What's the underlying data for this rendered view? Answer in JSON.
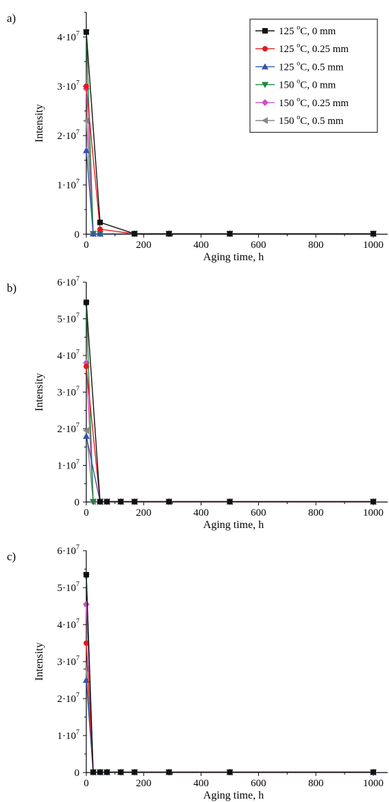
{
  "chart_data": [
    {
      "panel": "a)",
      "type": "line",
      "xlabel": "Aging time, h",
      "ylabel": "Intensity",
      "xlim": [
        0,
        1050
      ],
      "ylim": [
        0,
        45000000.0
      ],
      "xticks": [
        "0",
        "200",
        "400",
        "600",
        "800",
        "1000"
      ],
      "yticks": [
        {
          "mantissa": "0",
          "exp": ""
        },
        {
          "mantissa": "1·10",
          "exp": "7"
        },
        {
          "mantissa": "2·10",
          "exp": "7"
        },
        {
          "mantissa": "3·10",
          "exp": "7"
        },
        {
          "mantissa": "4·10",
          "exp": "7"
        }
      ],
      "legend": {
        "position": "top-right",
        "entries": [
          {
            "temp": "125",
            "deg": "o",
            "rest": "C, 0 mm",
            "color": "#111111",
            "marker": "square"
          },
          {
            "temp": "125",
            "deg": "o",
            "rest": "C, 0.25 mm",
            "color": "#e31a1c",
            "marker": "circle"
          },
          {
            "temp": "125",
            "deg": "o",
            "rest": "C, 0.5 mm",
            "color": "#3355aa",
            "marker": "triangle-up"
          },
          {
            "temp": "150",
            "deg": "o",
            "rest": "C, 0 mm",
            "color": "#1a8a3a",
            "marker": "triangle-down"
          },
          {
            "temp": "150",
            "deg": "o",
            "rest": "C, 0.25 mm",
            "color": "#d050c0",
            "marker": "diamond"
          },
          {
            "temp": "150",
            "deg": "o",
            "rest": "C, 0.5 mm",
            "color": "#888888",
            "marker": "triangle-left"
          }
        ]
      },
      "series": [
        {
          "x": [
            0,
            48,
            168,
            288,
            500,
            1000
          ],
          "y": [
            41000000.0,
            2400000.0,
            100000.0,
            100000.0,
            100000.0,
            100000.0
          ]
        },
        {
          "x": [
            0,
            48,
            168,
            288,
            500,
            1000
          ],
          "y": [
            30000000.0,
            1000000.0,
            100000.0,
            100000.0,
            100000.0,
            100000.0
          ]
        },
        {
          "x": [
            0,
            24,
            48,
            168,
            288,
            500,
            1000
          ],
          "y": [
            17000000.0,
            100000.0,
            100000.0,
            100000.0,
            100000.0,
            100000.0,
            100000.0
          ]
        },
        {
          "x": [
            0,
            24,
            48,
            168,
            288,
            500,
            1000
          ],
          "y": [
            41000000.0,
            100000.0,
            100000.0,
            100000.0,
            100000.0,
            100000.0,
            100000.0
          ]
        },
        {
          "x": [
            0,
            24,
            48,
            168,
            288,
            500,
            1000
          ],
          "y": [
            29500000.0,
            100000.0,
            100000.0,
            100000.0,
            100000.0,
            100000.0,
            100000.0
          ]
        },
        {
          "x": [
            0,
            24,
            48,
            168,
            288,
            500,
            1000
          ],
          "y": [
            23000000.0,
            100000.0,
            100000.0,
            100000.0,
            100000.0,
            100000.0,
            100000.0
          ]
        }
      ]
    },
    {
      "panel": "b)",
      "type": "line",
      "xlabel": "Aging time, h",
      "ylabel": "Intensity",
      "xlim": [
        0,
        1050
      ],
      "ylim": [
        0,
        60000000.0
      ],
      "xticks": [
        "0",
        "200",
        "400",
        "600",
        "800",
        "1000"
      ],
      "yticks": [
        {
          "mantissa": "0",
          "exp": ""
        },
        {
          "mantissa": "1·10",
          "exp": "7"
        },
        {
          "mantissa": "2·10",
          "exp": "7"
        },
        {
          "mantissa": "3·10",
          "exp": "7"
        },
        {
          "mantissa": "4·10",
          "exp": "7"
        },
        {
          "mantissa": "5·10",
          "exp": "7"
        },
        {
          "mantissa": "6·10",
          "exp": "7"
        }
      ],
      "series": [
        {
          "x": [
            0,
            48,
            72,
            120,
            168,
            288,
            500,
            1000
          ],
          "y": [
            54500000.0,
            100000.0,
            100000.0,
            100000.0,
            100000.0,
            100000.0,
            100000.0,
            100000.0
          ]
        },
        {
          "x": [
            0,
            48,
            72,
            120,
            168,
            288,
            500,
            1000
          ],
          "y": [
            37000000.0,
            100000.0,
            100000.0,
            100000.0,
            100000.0,
            100000.0,
            100000.0,
            100000.0
          ]
        },
        {
          "x": [
            0,
            48,
            72,
            120,
            168,
            288,
            500,
            1000
          ],
          "y": [
            18000000.0,
            100000.0,
            100000.0,
            100000.0,
            100000.0,
            100000.0,
            100000.0,
            100000.0
          ]
        },
        {
          "x": [
            0,
            24,
            48,
            72,
            120,
            168,
            288,
            500,
            1000
          ],
          "y": [
            54000000.0,
            100000.0,
            100000.0,
            100000.0,
            100000.0,
            100000.0,
            100000.0,
            100000.0,
            100000.0
          ]
        },
        {
          "x": [
            0,
            24,
            48,
            72,
            120,
            168,
            288,
            500,
            1000
          ],
          "y": [
            38000000.0,
            100000.0,
            100000.0,
            100000.0,
            100000.0,
            100000.0,
            100000.0,
            100000.0,
            100000.0
          ]
        },
        {
          "x": [
            0,
            24,
            48,
            72,
            120,
            168,
            288,
            500,
            1000
          ],
          "y": [
            19500000.0,
            100000.0,
            100000.0,
            100000.0,
            100000.0,
            100000.0,
            100000.0,
            100000.0,
            100000.0
          ]
        }
      ]
    },
    {
      "panel": "c)",
      "type": "line",
      "xlabel": "Aging time, h",
      "ylabel": "Intensity",
      "xlim": [
        0,
        1050
      ],
      "ylim": [
        0,
        60000000.0
      ],
      "xticks": [
        "0",
        "200",
        "400",
        "600",
        "800",
        "1000"
      ],
      "yticks": [
        {
          "mantissa": "0",
          "exp": ""
        },
        {
          "mantissa": "1·10",
          "exp": "7"
        },
        {
          "mantissa": "2·10",
          "exp": "7"
        },
        {
          "mantissa": "3·10",
          "exp": "7"
        },
        {
          "mantissa": "4·10",
          "exp": "7"
        },
        {
          "mantissa": "5·10",
          "exp": "7"
        },
        {
          "mantissa": "6·10",
          "exp": "7"
        }
      ],
      "series": [
        {
          "x": [
            0,
            24,
            48,
            72,
            120,
            168,
            288,
            500,
            1000
          ],
          "y": [
            53500000.0,
            100000.0,
            100000.0,
            100000.0,
            100000.0,
            100000.0,
            100000.0,
            100000.0,
            100000.0
          ]
        },
        {
          "x": [
            0,
            24,
            48,
            72,
            120,
            168,
            288,
            500,
            1000
          ],
          "y": [
            35000000.0,
            100000.0,
            100000.0,
            100000.0,
            100000.0,
            100000.0,
            100000.0,
            100000.0,
            100000.0
          ]
        },
        {
          "x": [
            0,
            24,
            48,
            72,
            120,
            168,
            288,
            500,
            1000
          ],
          "y": [
            25000000.0,
            100000.0,
            100000.0,
            100000.0,
            100000.0,
            100000.0,
            100000.0,
            100000.0,
            100000.0
          ]
        },
        {
          "x": [
            0,
            24,
            48,
            72,
            120,
            168,
            288,
            500,
            1000
          ],
          "y": [
            53000000.0,
            100000.0,
            100000.0,
            100000.0,
            100000.0,
            100000.0,
            100000.0,
            100000.0,
            100000.0
          ]
        },
        {
          "x": [
            0,
            24,
            48,
            72,
            120,
            168,
            288,
            500,
            1000
          ],
          "y": [
            45500000.0,
            100000.0,
            100000.0,
            100000.0,
            100000.0,
            100000.0,
            100000.0,
            100000.0,
            100000.0
          ]
        },
        {
          "x": [
            0,
            24,
            48,
            72,
            120,
            168,
            288,
            500,
            1000
          ],
          "y": [
            28000000.0,
            100000.0,
            100000.0,
            100000.0,
            100000.0,
            100000.0,
            100000.0,
            100000.0,
            100000.0
          ]
        }
      ]
    }
  ]
}
